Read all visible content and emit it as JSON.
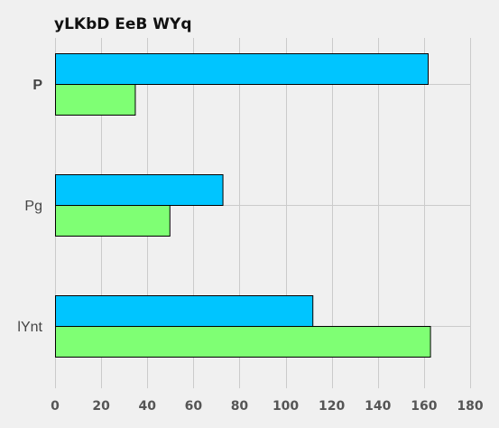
{
  "chart_data": {
    "type": "bar",
    "orientation": "horizontal",
    "title": "yLKbD EeB WYq",
    "xlabel": "",
    "ylabel": "",
    "categories": [
      "P",
      "Pg",
      "lYnt"
    ],
    "series": [
      {
        "color": "#00c5ff",
        "values": [
          162,
          73,
          112
        ]
      },
      {
        "color": "#7fff74",
        "values": [
          35,
          50,
          163
        ]
      }
    ],
    "xlim": [
      0,
      180
    ],
    "xticks": [
      0,
      20,
      40,
      60,
      80,
      100,
      120,
      140,
      160,
      180
    ],
    "grid": true,
    "legend": "none",
    "background": "#f0f0f0"
  }
}
